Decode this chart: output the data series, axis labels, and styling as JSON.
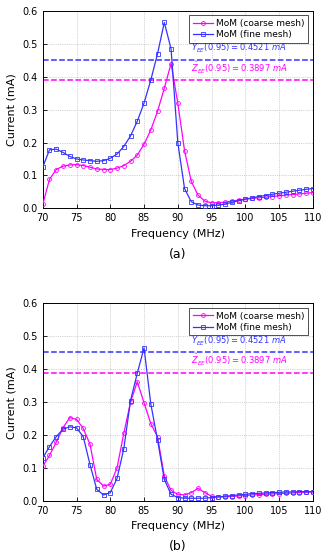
{
  "xlim": [
    70,
    110
  ],
  "ylim": [
    0,
    0.6
  ],
  "yticks": [
    0,
    0.1,
    0.2,
    0.3,
    0.4,
    0.5,
    0.6
  ],
  "xticks": [
    70,
    75,
    80,
    85,
    90,
    95,
    100,
    105,
    110
  ],
  "xlabel": "Frequency (MHz)",
  "ylabel": "Current (mA)",
  "hline_blue_y": 0.4521,
  "hline_magenta_y": 0.3897,
  "legend_coarse": "MoM (coarse mesh)",
  "legend_fine": "MoM (fine mesh)",
  "coarse_color": "#FF00FF",
  "fine_color": "#3333FF",
  "background_color": "#ffffff",
  "subplot_a_fine_freq": [
    70,
    71,
    72,
    73,
    74,
    75,
    76,
    77,
    78,
    79,
    80,
    81,
    82,
    83,
    84,
    85,
    86,
    87,
    88,
    89,
    90,
    91,
    92,
    93,
    94,
    95,
    96,
    97,
    98,
    99,
    100,
    101,
    102,
    103,
    104,
    105,
    106,
    107,
    108,
    109,
    110
  ],
  "subplot_a_fine_curr": [
    0.125,
    0.178,
    0.18,
    0.17,
    0.158,
    0.15,
    0.147,
    0.145,
    0.143,
    0.145,
    0.152,
    0.165,
    0.188,
    0.22,
    0.265,
    0.32,
    0.39,
    0.47,
    0.565,
    0.485,
    0.2,
    0.06,
    0.02,
    0.01,
    0.008,
    0.008,
    0.01,
    0.013,
    0.018,
    0.023,
    0.028,
    0.032,
    0.036,
    0.039,
    0.043,
    0.046,
    0.049,
    0.052,
    0.055,
    0.058,
    0.06
  ],
  "subplot_a_coarse_freq": [
    70,
    71,
    72,
    73,
    74,
    75,
    76,
    77,
    78,
    79,
    80,
    81,
    82,
    83,
    84,
    85,
    86,
    87,
    88,
    89,
    90,
    91,
    92,
    93,
    94,
    95,
    96,
    97,
    98,
    99,
    100,
    101,
    102,
    103,
    104,
    105,
    106,
    107,
    108,
    109,
    110
  ],
  "subplot_a_coarse_curr": [
    0.012,
    0.088,
    0.118,
    0.128,
    0.132,
    0.133,
    0.13,
    0.125,
    0.12,
    0.118,
    0.118,
    0.122,
    0.13,
    0.143,
    0.162,
    0.195,
    0.238,
    0.295,
    0.365,
    0.44,
    0.32,
    0.175,
    0.082,
    0.04,
    0.022,
    0.017,
    0.017,
    0.019,
    0.022,
    0.025,
    0.028,
    0.03,
    0.032,
    0.034,
    0.036,
    0.038,
    0.04,
    0.042,
    0.044,
    0.046,
    0.048
  ],
  "subplot_b_fine_freq": [
    70,
    71,
    72,
    73,
    74,
    75,
    76,
    77,
    78,
    79,
    80,
    81,
    82,
    83,
    84,
    85,
    86,
    87,
    88,
    89,
    90,
    91,
    92,
    93,
    94,
    95,
    96,
    97,
    98,
    99,
    100,
    101,
    102,
    103,
    104,
    105,
    106,
    107,
    108,
    109,
    110
  ],
  "subplot_b_fine_curr": [
    0.13,
    0.165,
    0.195,
    0.218,
    0.225,
    0.222,
    0.195,
    0.11,
    0.035,
    0.018,
    0.025,
    0.068,
    0.158,
    0.305,
    0.388,
    0.465,
    0.295,
    0.185,
    0.065,
    0.02,
    0.01,
    0.008,
    0.008,
    0.008,
    0.008,
    0.01,
    0.012,
    0.014,
    0.016,
    0.018,
    0.02,
    0.022,
    0.023,
    0.024,
    0.025,
    0.026,
    0.027,
    0.027,
    0.028,
    0.028,
    0.028
  ],
  "subplot_b_coarse_freq": [
    70,
    71,
    72,
    73,
    74,
    75,
    76,
    77,
    78,
    79,
    80,
    81,
    82,
    83,
    84,
    85,
    86,
    87,
    88,
    89,
    90,
    91,
    92,
    93,
    94,
    95,
    96,
    97,
    98,
    99,
    100,
    101,
    102,
    103,
    104,
    105,
    106,
    107,
    108,
    109,
    110
  ],
  "subplot_b_coarse_curr": [
    0.105,
    0.138,
    0.178,
    0.222,
    0.253,
    0.248,
    0.22,
    0.172,
    0.065,
    0.045,
    0.05,
    0.1,
    0.205,
    0.3,
    0.362,
    0.298,
    0.235,
    0.195,
    0.075,
    0.032,
    0.02,
    0.018,
    0.025,
    0.038,
    0.025,
    0.014,
    0.012,
    0.012,
    0.013,
    0.015,
    0.016,
    0.018,
    0.019,
    0.02,
    0.021,
    0.022,
    0.023,
    0.024,
    0.025,
    0.026,
    0.027
  ]
}
